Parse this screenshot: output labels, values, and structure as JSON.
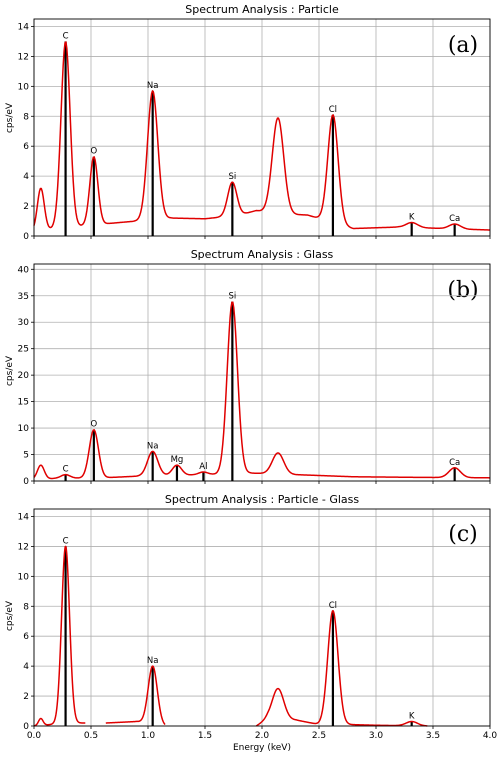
{
  "chart_data": [
    {
      "type": "line",
      "title": "Spectrum Analysis : Particle",
      "panel_label": "(a)",
      "ylabel": "cps/eV",
      "xlabel": "",
      "xlim": [
        0.0,
        4.0
      ],
      "ylim": [
        0,
        14.5
      ],
      "yticks": [
        0,
        2,
        4,
        6,
        8,
        10,
        12,
        14
      ],
      "xticks": [
        0.0,
        0.5,
        1.0,
        1.5,
        2.0,
        2.5,
        3.0,
        3.5,
        4.0
      ],
      "show_xtick_labels": false,
      "grid": true,
      "baseline": [
        [
          0.0,
          0.3
        ],
        [
          0.18,
          0.5
        ],
        [
          0.6,
          0.8
        ],
        [
          0.9,
          1.0
        ],
        [
          1.2,
          1.2
        ],
        [
          1.5,
          1.15
        ],
        [
          1.8,
          1.4
        ],
        [
          1.95,
          1.7
        ],
        [
          2.1,
          1.5
        ],
        [
          2.4,
          1.4
        ],
        [
          2.8,
          0.5
        ],
        [
          3.2,
          0.6
        ],
        [
          3.6,
          0.5
        ],
        [
          4.0,
          0.4
        ]
      ],
      "peaks": [
        {
          "label": "",
          "x": 0.06,
          "y": 3.2,
          "w": 0.03
        },
        {
          "label": "C",
          "x": 0.277,
          "y": 13.0,
          "w": 0.04
        },
        {
          "label": "O",
          "x": 0.525,
          "y": 5.3,
          "w": 0.035
        },
        {
          "label": "Na",
          "x": 1.041,
          "y": 9.7,
          "w": 0.045
        },
        {
          "label": "Si",
          "x": 1.74,
          "y": 3.6,
          "w": 0.04
        },
        {
          "label": "",
          "x": 2.14,
          "y": 7.9,
          "w": 0.05
        },
        {
          "label": "Cl",
          "x": 2.622,
          "y": 8.1,
          "w": 0.045
        },
        {
          "label": "K",
          "x": 3.313,
          "y": 0.9,
          "w": 0.05
        },
        {
          "label": "Ca",
          "x": 3.69,
          "y": 0.8,
          "w": 0.05
        }
      ]
    },
    {
      "type": "line",
      "title": "Spectrum Analysis : Glass",
      "panel_label": "(b)",
      "ylabel": "cps/eV",
      "xlabel": "",
      "xlim": [
        0.0,
        4.0
      ],
      "ylim": [
        0,
        41
      ],
      "yticks": [
        0,
        5,
        10,
        15,
        20,
        25,
        30,
        35,
        40
      ],
      "xticks": [
        0.0,
        0.5,
        1.0,
        1.5,
        2.0,
        2.5,
        3.0,
        3.5,
        4.0
      ],
      "show_xtick_labels": false,
      "grid": true,
      "baseline": [
        [
          0.0,
          0.3
        ],
        [
          0.2,
          0.5
        ],
        [
          0.6,
          0.6
        ],
        [
          1.0,
          1.0
        ],
        [
          1.5,
          1.2
        ],
        [
          1.9,
          1.5
        ],
        [
          2.3,
          1.2
        ],
        [
          2.8,
          0.8
        ],
        [
          3.3,
          0.7
        ],
        [
          4.0,
          0.6
        ]
      ],
      "peaks": [
        {
          "label": "",
          "x": 0.06,
          "y": 3.0,
          "w": 0.03
        },
        {
          "label": "C",
          "x": 0.277,
          "y": 1.2,
          "w": 0.04
        },
        {
          "label": "O",
          "x": 0.525,
          "y": 9.7,
          "w": 0.04
        },
        {
          "label": "Na",
          "x": 1.041,
          "y": 5.6,
          "w": 0.045
        },
        {
          "label": "Mg",
          "x": 1.254,
          "y": 3.0,
          "w": 0.04
        },
        {
          "label": "Al",
          "x": 1.486,
          "y": 1.7,
          "w": 0.04
        },
        {
          "label": "Si",
          "x": 1.74,
          "y": 33.9,
          "w": 0.045
        },
        {
          "label": "",
          "x": 2.14,
          "y": 5.3,
          "w": 0.05
        },
        {
          "label": "Ca",
          "x": 3.69,
          "y": 2.5,
          "w": 0.05
        }
      ]
    },
    {
      "type": "line",
      "title": "Spectrum Analysis : Particle - Glass",
      "panel_label": "(c)",
      "ylabel": "cps/eV",
      "xlabel": "Energy (keV)",
      "xlim": [
        0.0,
        4.0
      ],
      "ylim": [
        0,
        14.5
      ],
      "yticks": [
        0,
        2,
        4,
        6,
        8,
        10,
        12,
        14
      ],
      "xticks": [
        0.0,
        0.5,
        1.0,
        1.5,
        2.0,
        2.5,
        3.0,
        3.5,
        4.0
      ],
      "xticklabels": [
        "0.0",
        "0.5",
        "1.0",
        "1.5",
        "2.0",
        "2.5",
        "3.0",
        "3.5",
        "4.0"
      ],
      "show_xtick_labels": true,
      "grid": true,
      "segments": [
        [
          0.0,
          0.45
        ],
        [
          0.63,
          1.15
        ],
        [
          1.95,
          3.45
        ]
      ],
      "baseline": [
        [
          0.0,
          0.0
        ],
        [
          0.3,
          0.2
        ],
        [
          0.63,
          0.2
        ],
        [
          0.9,
          0.3
        ],
        [
          1.15,
          0.0
        ],
        [
          1.95,
          0.0
        ],
        [
          2.05,
          0.5
        ],
        [
          2.3,
          0.4
        ],
        [
          2.5,
          0.1
        ],
        [
          2.75,
          0.1
        ],
        [
          3.0,
          0.05
        ],
        [
          3.45,
          0.0
        ],
        [
          4.0,
          0.0
        ]
      ],
      "peaks": [
        {
          "label": "",
          "x": 0.06,
          "y": 0.5,
          "w": 0.02
        },
        {
          "label": "C",
          "x": 0.277,
          "y": 12.0,
          "w": 0.035
        },
        {
          "label": "Na",
          "x": 1.041,
          "y": 4.0,
          "w": 0.04
        },
        {
          "label": "",
          "x": 2.14,
          "y": 2.5,
          "w": 0.05
        },
        {
          "label": "Cl",
          "x": 2.622,
          "y": 7.7,
          "w": 0.045
        },
        {
          "label": "K",
          "x": 3.313,
          "y": 0.3,
          "w": 0.05
        }
      ]
    }
  ]
}
